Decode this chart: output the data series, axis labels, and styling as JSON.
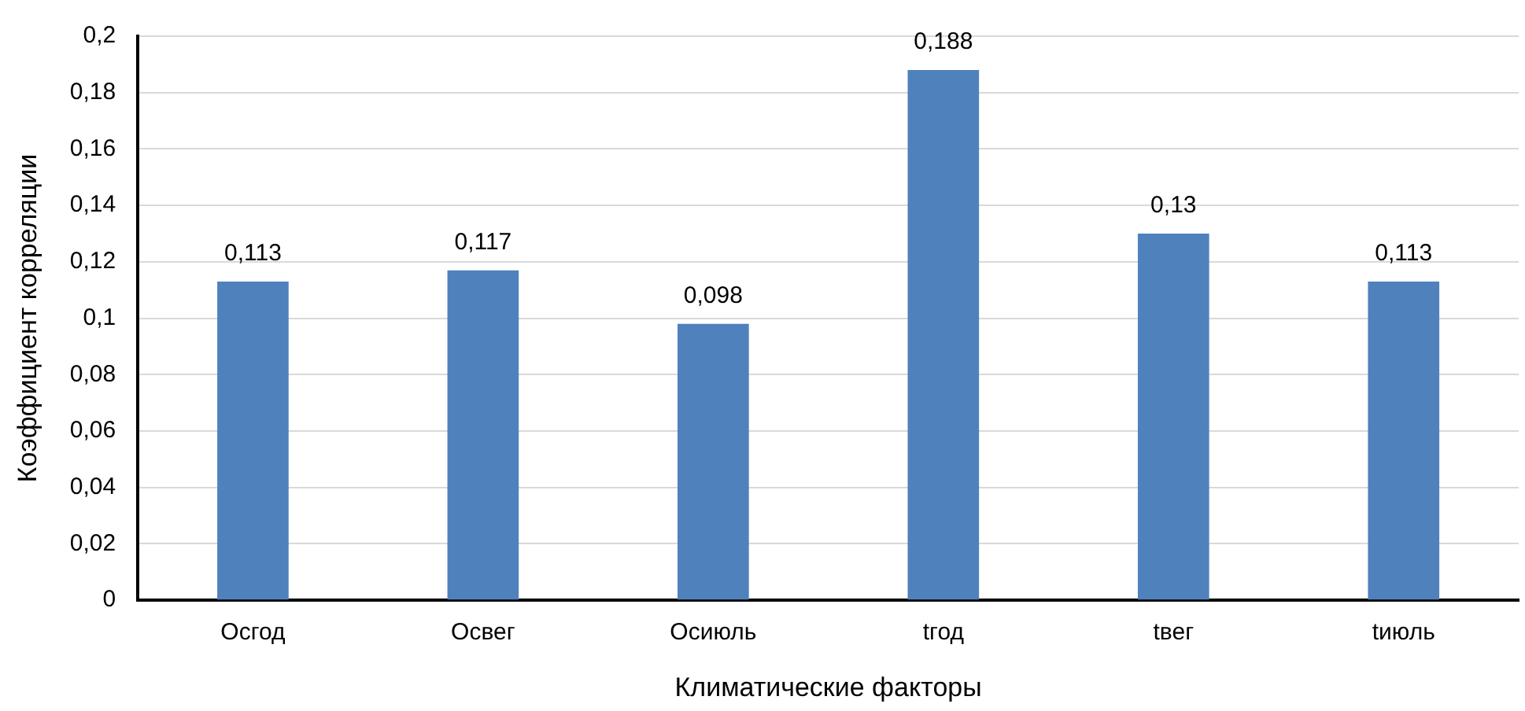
{
  "chart_data": {
    "type": "bar",
    "xlabel": "Климатические факторы",
    "ylabel": "Коэффициент корреляции",
    "categories": [
      "Осгод",
      "Освег",
      "Осиюль",
      "tгод",
      "tвег",
      "tиюль"
    ],
    "values": [
      0.113,
      0.117,
      0.098,
      0.188,
      0.13,
      0.113
    ],
    "value_labels": [
      "0,113",
      "0,117",
      "0,098",
      "0,188",
      "0,13",
      "0,113"
    ],
    "color": "#4f81bd",
    "ylim": [
      0,
      0.2
    ],
    "yticks": [
      {
        "value": 0,
        "label": "0"
      },
      {
        "value": 0.02,
        "label": "0,02"
      },
      {
        "value": 0.04,
        "label": "0,04"
      },
      {
        "value": 0.06,
        "label": "0,06"
      },
      {
        "value": 0.08,
        "label": "0,08"
      },
      {
        "value": 0.1,
        "label": "0,1"
      },
      {
        "value": 0.12,
        "label": "0,12"
      },
      {
        "value": 0.14,
        "label": "0,14"
      },
      {
        "value": 0.16,
        "label": "0,16"
      },
      {
        "value": 0.18,
        "label": "0,18"
      },
      {
        "value": 0.2,
        "label": "0,2"
      }
    ],
    "grid": "y",
    "legend": false
  }
}
